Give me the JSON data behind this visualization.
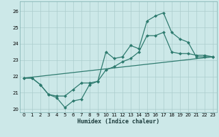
{
  "title": "",
  "xlabel": "Humidex (Indice chaleur)",
  "background_color": "#cce8e8",
  "grid_color": "#aacccc",
  "line_color": "#2d7a6e",
  "xlim": [
    -0.5,
    23.5
  ],
  "ylim": [
    19.8,
    26.6
  ],
  "yticks": [
    20,
    21,
    22,
    23,
    24,
    25,
    26
  ],
  "xticks": [
    0,
    1,
    2,
    3,
    4,
    5,
    6,
    7,
    8,
    9,
    10,
    11,
    12,
    13,
    14,
    15,
    16,
    17,
    18,
    19,
    20,
    21,
    22,
    23
  ],
  "series1_x": [
    0,
    1,
    2,
    3,
    4,
    5,
    6,
    7,
    8,
    9,
    10,
    11,
    12,
    13,
    14,
    15,
    16,
    17,
    18,
    19,
    20,
    21,
    22,
    23
  ],
  "series1_y": [
    21.9,
    21.9,
    21.5,
    20.9,
    20.7,
    20.1,
    20.5,
    20.6,
    21.5,
    21.7,
    23.5,
    23.1,
    23.2,
    23.9,
    23.7,
    25.4,
    25.7,
    25.9,
    24.7,
    24.3,
    24.1,
    23.2,
    23.2,
    23.2
  ],
  "series2_x": [
    0,
    1,
    2,
    3,
    4,
    5,
    6,
    7,
    8,
    9,
    10,
    11,
    12,
    13,
    14,
    15,
    16,
    17,
    18,
    19,
    20,
    21,
    22,
    23
  ],
  "series2_y": [
    21.9,
    21.9,
    21.5,
    20.9,
    20.8,
    20.8,
    21.2,
    21.6,
    21.6,
    21.7,
    22.4,
    22.6,
    22.9,
    23.1,
    23.5,
    24.5,
    24.5,
    24.7,
    23.5,
    23.4,
    23.4,
    23.3,
    23.3,
    23.2
  ],
  "series3_x": [
    0,
    23
  ],
  "series3_y": [
    21.9,
    23.2
  ]
}
